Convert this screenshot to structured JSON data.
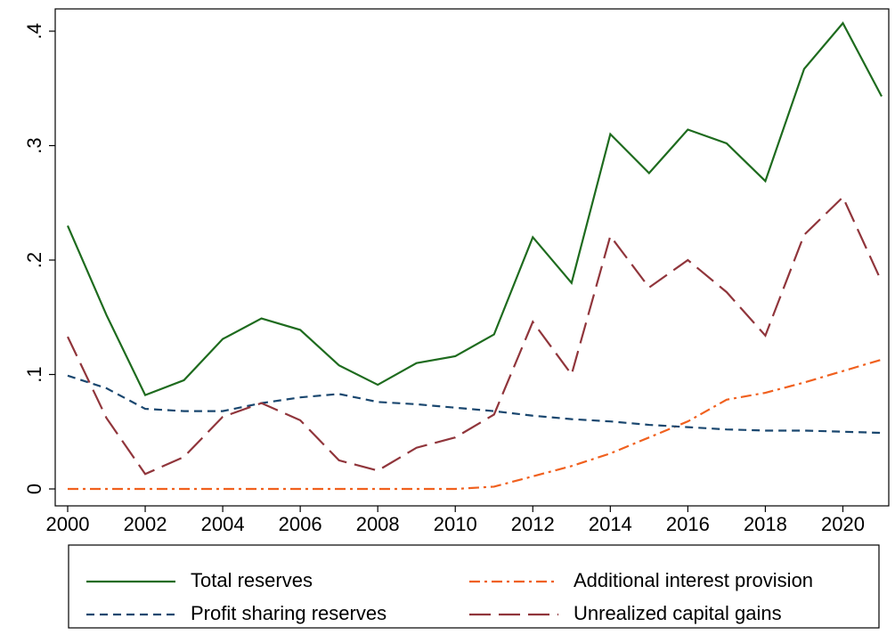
{
  "chart_data": {
    "type": "line",
    "x": [
      2000,
      2001,
      2002,
      2003,
      2004,
      2005,
      2006,
      2007,
      2008,
      2009,
      2010,
      2011,
      2012,
      2013,
      2014,
      2015,
      2016,
      2017,
      2018,
      2019,
      2020,
      2021
    ],
    "xlim": [
      2000,
      2021
    ],
    "xticks": [
      2000,
      2002,
      2004,
      2006,
      2008,
      2010,
      2012,
      2014,
      2016,
      2018,
      2020
    ],
    "ylim": [
      0,
      0.4
    ],
    "yticks": [
      0,
      {
        "value": 0.1,
        "label": ".1"
      },
      {
        "value": 0.2,
        "label": ".2"
      },
      {
        "value": 0.3,
        "label": ".3"
      },
      {
        "value": 0.4,
        "label": ".4"
      }
    ],
    "grid": false,
    "legend": "bottom",
    "series": [
      {
        "name": "Total reserves",
        "color": "#1e6b1e",
        "dash": "solid",
        "values": [
          0.23,
          0.152,
          0.082,
          0.095,
          0.131,
          0.149,
          0.139,
          0.108,
          0.091,
          0.11,
          0.116,
          0.135,
          0.22,
          0.18,
          0.31,
          0.276,
          0.314,
          0.302,
          0.269,
          0.367,
          0.407,
          0.343
        ]
      },
      {
        "name": "Additional interest provision",
        "color": "#f0601e",
        "dash": "dashdot",
        "values": [
          0,
          0,
          0,
          0,
          0,
          0,
          0,
          0,
          0,
          0,
          0,
          0.002,
          0.011,
          0.02,
          0.031,
          0.045,
          0.059,
          0.078,
          0.084,
          0.093,
          0.103,
          0.113
        ]
      },
      {
        "name": "Profit sharing reserves",
        "color": "#1a476f",
        "dash": "dash",
        "values": [
          0.099,
          0.088,
          0.07,
          0.068,
          0.068,
          0.075,
          0.08,
          0.083,
          0.076,
          0.074,
          0.071,
          0.068,
          0.064,
          0.061,
          0.059,
          0.056,
          0.054,
          0.052,
          0.051,
          0.051,
          0.05,
          0.049
        ]
      },
      {
        "name": "Unrealized capital gains",
        "color": "#90353b",
        "dash": "longdash",
        "values": [
          0.133,
          0.062,
          0.013,
          0.028,
          0.063,
          0.075,
          0.06,
          0.025,
          0.016,
          0.036,
          0.045,
          0.065,
          0.146,
          0.1,
          0.221,
          0.176,
          0.2,
          0.172,
          0.134,
          0.222,
          0.255,
          0.181
        ]
      }
    ]
  }
}
